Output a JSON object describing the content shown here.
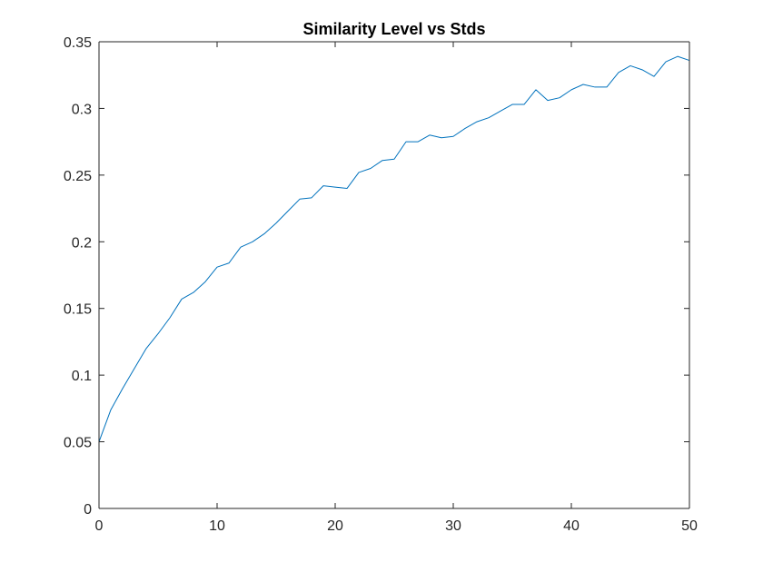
{
  "chart_data": {
    "type": "line",
    "title": "Similarity Level vs Stds",
    "xlabel": "",
    "ylabel": "",
    "xlim": [
      0,
      50
    ],
    "ylim": [
      0,
      0.35
    ],
    "xticks": [
      0,
      10,
      20,
      30,
      40,
      50
    ],
    "yticks": [
      0,
      0.05,
      0.1,
      0.15,
      0.2,
      0.25,
      0.3,
      0.35
    ],
    "xtick_labels": [
      "0",
      "10",
      "20",
      "30",
      "40",
      "50"
    ],
    "ytick_labels": [
      "0",
      "0.05",
      "0.1",
      "0.15",
      "0.2",
      "0.25",
      "0.3",
      "0.35"
    ],
    "grid": false,
    "series": [
      {
        "color": "#0072BD",
        "x": [
          0,
          1,
          2,
          3,
          4,
          5,
          6,
          7,
          8,
          9,
          10,
          11,
          12,
          13,
          14,
          15,
          16,
          17,
          18,
          19,
          20,
          21,
          22,
          23,
          24,
          25,
          26,
          27,
          28,
          29,
          30,
          31,
          32,
          33,
          34,
          35,
          36,
          37,
          38,
          39,
          40,
          41,
          42,
          43,
          44,
          45,
          46,
          47,
          48,
          49,
          50
        ],
        "y": [
          0.05,
          0.074,
          0.09,
          0.105,
          0.12,
          0.131,
          0.143,
          0.157,
          0.162,
          0.17,
          0.181,
          0.184,
          0.196,
          0.2,
          0.206,
          0.214,
          0.223,
          0.232,
          0.233,
          0.242,
          0.241,
          0.24,
          0.252,
          0.255,
          0.261,
          0.262,
          0.275,
          0.275,
          0.28,
          0.278,
          0.279,
          0.285,
          0.29,
          0.293,
          0.298,
          0.303,
          0.303,
          0.314,
          0.306,
          0.308,
          0.314,
          0.318,
          0.316,
          0.316,
          0.327,
          0.332,
          0.329,
          0.324,
          0.335,
          0.339,
          0.336
        ]
      }
    ]
  }
}
